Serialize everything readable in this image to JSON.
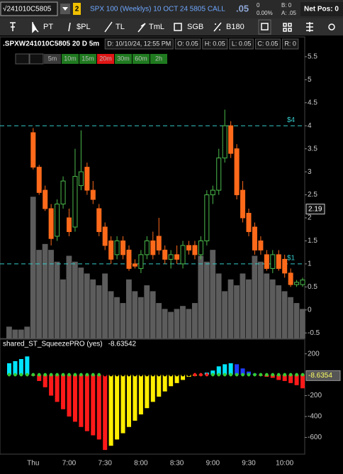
{
  "header": {
    "symbol": "√241010C5805",
    "link": "2",
    "description": "SPX 100 (Weeklys) 10 OCT 24 5805 CALL",
    "last": ".05",
    "change": "0",
    "change_pct": "0.00%",
    "bid": "B: 0",
    "ask": "A: .05",
    "net_pos": "Net Pos: 0"
  },
  "toolbar": [
    "PT",
    "$PL",
    "TL",
    "TmL",
    "SGB",
    "B180"
  ],
  "chart_data": [
    {
      "type": "candlestick",
      "title": ".SPXW241010C5805 20 D 5m",
      "info": [
        "D: 10/10/24, 12:55 PM",
        "O: 0.05",
        "H: 0.05",
        "L: 0.05",
        "C: 0.05",
        "R: 0"
      ],
      "timeframes": [
        {
          "label": "5m",
          "color": "#3a3a3a"
        },
        {
          "label": "10m",
          "color": "#1f7a1f"
        },
        {
          "label": "15m",
          "color": "#1f7a1f"
        },
        {
          "label": "20m",
          "color": "#e01515"
        },
        {
          "label": "30m",
          "color": "#1f7a1f"
        },
        {
          "label": "60m",
          "color": "#1f7a1f"
        },
        {
          "label": "2h",
          "color": "#1f7a1f"
        }
      ],
      "categories": [
        null,
        null,
        null,
        null,
        "Thu",
        null,
        null,
        null,
        null,
        null,
        "7:00",
        null,
        null,
        null,
        null,
        null,
        "7:30",
        null,
        null,
        null,
        null,
        null,
        "8:00",
        null,
        null,
        null,
        null,
        null,
        "8:30",
        null,
        null,
        null,
        null,
        null,
        "9:00",
        null,
        null,
        null,
        null,
        null,
        "9:30",
        null,
        null,
        null,
        null,
        null,
        "10:00",
        null,
        null,
        null
      ],
      "open": [
        null,
        null,
        null,
        null,
        3.85,
        3.1,
        2.6,
        2.2,
        1.6,
        2.3,
        2.0,
        1.8,
        2.7,
        3.1,
        2.6,
        2.2,
        1.8,
        1.5,
        1.2,
        1.5,
        1.3,
        1.0,
        0.9,
        1.2,
        1.5,
        1.6,
        1.3,
        1.1,
        1.2,
        1.0,
        1.4,
        1.4,
        1.2,
        1.5,
        2.5,
        2.6,
        3.3,
        4.0,
        3.5,
        2.6,
        2.1,
        1.8,
        1.5,
        1.2,
        0.9,
        1.2,
        1.1,
        0.8,
        0.55,
        0.55
      ],
      "high": [
        null,
        null,
        null,
        null,
        3.95,
        3.15,
        2.7,
        2.3,
        2.4,
        2.9,
        2.2,
        3.5,
        3.9,
        3.2,
        2.8,
        2.3,
        1.9,
        1.6,
        1.6,
        1.6,
        1.4,
        1.1,
        1.3,
        1.6,
        1.7,
        2.0,
        1.4,
        1.3,
        1.4,
        1.5,
        1.5,
        1.5,
        1.6,
        2.6,
        2.7,
        3.5,
        4.35,
        4.1,
        3.6,
        2.8,
        2.2,
        1.9,
        1.6,
        1.3,
        1.3,
        1.3,
        1.2,
        0.9,
        0.65,
        0.7
      ],
      "low": [
        null,
        null,
        null,
        null,
        3.05,
        2.5,
        2.15,
        1.4,
        1.5,
        2.2,
        1.6,
        1.7,
        2.6,
        2.5,
        2.3,
        1.6,
        1.3,
        1.0,
        1.1,
        1.1,
        0.85,
        0.9,
        0.8,
        1.1,
        1.1,
        1.2,
        1.0,
        0.9,
        1.0,
        0.9,
        1.2,
        1.1,
        1.1,
        1.4,
        2.3,
        2.5,
        3.2,
        3.3,
        2.4,
        1.9,
        1.6,
        1.2,
        1.2,
        0.85,
        0.8,
        0.85,
        0.7,
        0.5,
        0.5,
        0.5
      ],
      "close": [
        null,
        null,
        null,
        null,
        3.1,
        2.55,
        2.2,
        1.55,
        2.3,
        2.8,
        1.7,
        2.9,
        3.0,
        2.6,
        2.4,
        1.7,
        1.4,
        1.1,
        1.5,
        1.2,
        0.9,
        0.95,
        1.2,
        1.5,
        1.2,
        1.3,
        1.1,
        1.2,
        1.1,
        1.4,
        1.3,
        1.2,
        1.5,
        2.5,
        2.6,
        3.3,
        4.0,
        3.4,
        2.5,
        2.0,
        1.7,
        1.3,
        1.3,
        0.9,
        1.2,
        0.9,
        0.8,
        0.55,
        0.6,
        0.65
      ],
      "volume": [
        4,
        3,
        3,
        4,
        48,
        30,
        32,
        30,
        26,
        20,
        28,
        26,
        24,
        22,
        20,
        18,
        22,
        16,
        14,
        12,
        20,
        16,
        14,
        18,
        16,
        12,
        10,
        9,
        10,
        11,
        10,
        12,
        28,
        26,
        30,
        22,
        16,
        20,
        18,
        22,
        20,
        28,
        26,
        22,
        20,
        18,
        16,
        14,
        12,
        10
      ],
      "up_color": "#4cbb4c",
      "down_color": "#ff6a1a",
      "volume_color": "#5c5c5c",
      "ylim": [
        -0.62,
        5.93
      ],
      "yticks": [
        5.5,
        5,
        4.5,
        4,
        3.5,
        3,
        2.5,
        2,
        1.5,
        1,
        0.5,
        0,
        -0.5
      ],
      "levels": [
        {
          "value": 4,
          "label": "$4"
        },
        {
          "value": 1,
          "label": "$1"
        }
      ],
      "level_color": "#35c9c9",
      "marker": 2.19
    },
    {
      "type": "histogram",
      "title": "shared_ST_SqueezePRO (yes)",
      "study_value": -8.63542,
      "marker": -8.6354,
      "values": [
        110,
        130,
        150,
        175,
        -10,
        -60,
        -120,
        -200,
        -260,
        -330,
        -400,
        -450,
        -500,
        -540,
        -580,
        -620,
        -720,
        -680,
        -620,
        -560,
        -500,
        -440,
        -380,
        -320,
        -260,
        -210,
        -160,
        -110,
        -80,
        -50,
        -20,
        -10,
        -5,
        20,
        40,
        80,
        100,
        110,
        100,
        60,
        30,
        10,
        -10,
        -20,
        -30,
        -50,
        -60,
        -80,
        -100,
        -130
      ],
      "colors": {
        "pos_up": "#00e5ff",
        "pos_down": "#1f3dff",
        "neg_down": "#ff1a1a",
        "neg_up": "#ffee00"
      },
      "dot_colors": [
        "#33cc33",
        "#33cc33",
        "#33cc33",
        "#33cc33",
        "#33cc33",
        "#33cc33",
        "#33cc33",
        "#33cc33",
        "#33cc33",
        "#33cc33",
        "#33cc33",
        "#33cc33",
        "#33cc33",
        "#33cc33",
        "#33cc33",
        "#33cc33",
        "#000000",
        "#000000",
        "#000000",
        "#000000",
        "#000000",
        "#000000",
        "#000000",
        "#000000",
        "#000000",
        "#000000",
        "#000000",
        "#000000",
        "#000000",
        "#000000",
        "#000000",
        "#ff2020",
        "#ff2020",
        "#ff2020",
        "#33cc33",
        "#33cc33",
        "#33cc33",
        "#33cc33",
        "#33cc33",
        "#33cc33",
        "#33cc33",
        "#33cc33",
        "#33cc33",
        "#33cc33",
        "#33cc33",
        "#33cc33",
        "#33cc33",
        "#33cc33",
        "#33cc33",
        "#33cc33"
      ],
      "ylim": [
        -760,
        245
      ],
      "yticks": [
        200,
        -200,
        -400,
        -600
      ]
    }
  ]
}
